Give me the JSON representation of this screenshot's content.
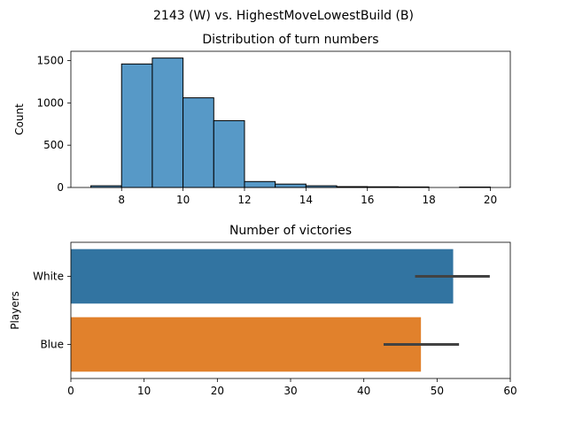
{
  "figure": {
    "suptitle": "2143 (W) vs. HighestMoveLowestBuild (B)"
  },
  "chart_data": [
    {
      "type": "bar",
      "subtype": "histogram",
      "title": "Distribution of turn numbers",
      "xlabel": "",
      "ylabel": "Count",
      "xlim": [
        6.35,
        20.65
      ],
      "ylim": [
        0,
        1610
      ],
      "x_ticks": [
        8,
        10,
        12,
        14,
        16,
        18,
        20
      ],
      "y_ticks": [
        0,
        500,
        1000,
        1500
      ],
      "bin_width": 1,
      "bins": [
        7,
        8,
        9,
        10,
        11,
        12,
        13,
        14,
        15,
        16,
        17,
        18,
        19
      ],
      "values": [
        20,
        1460,
        1530,
        1060,
        790,
        70,
        40,
        20,
        10,
        8,
        6,
        0,
        5
      ],
      "color": "#5799c7",
      "edge_color": "#000000"
    },
    {
      "type": "bar",
      "orientation": "horizontal",
      "title": "Number of victories",
      "xlabel": "",
      "ylabel": "Players",
      "xlim": [
        0,
        60
      ],
      "x_ticks": [
        0,
        10,
        20,
        30,
        40,
        50,
        60
      ],
      "categories": [
        "White",
        "Blue"
      ],
      "values": [
        52.2,
        47.8
      ],
      "error_low": [
        47,
        42.7
      ],
      "error_high": [
        57.2,
        53
      ],
      "colors": [
        "#3274a1",
        "#e1812c"
      ],
      "error_color": "#424242"
    }
  ]
}
